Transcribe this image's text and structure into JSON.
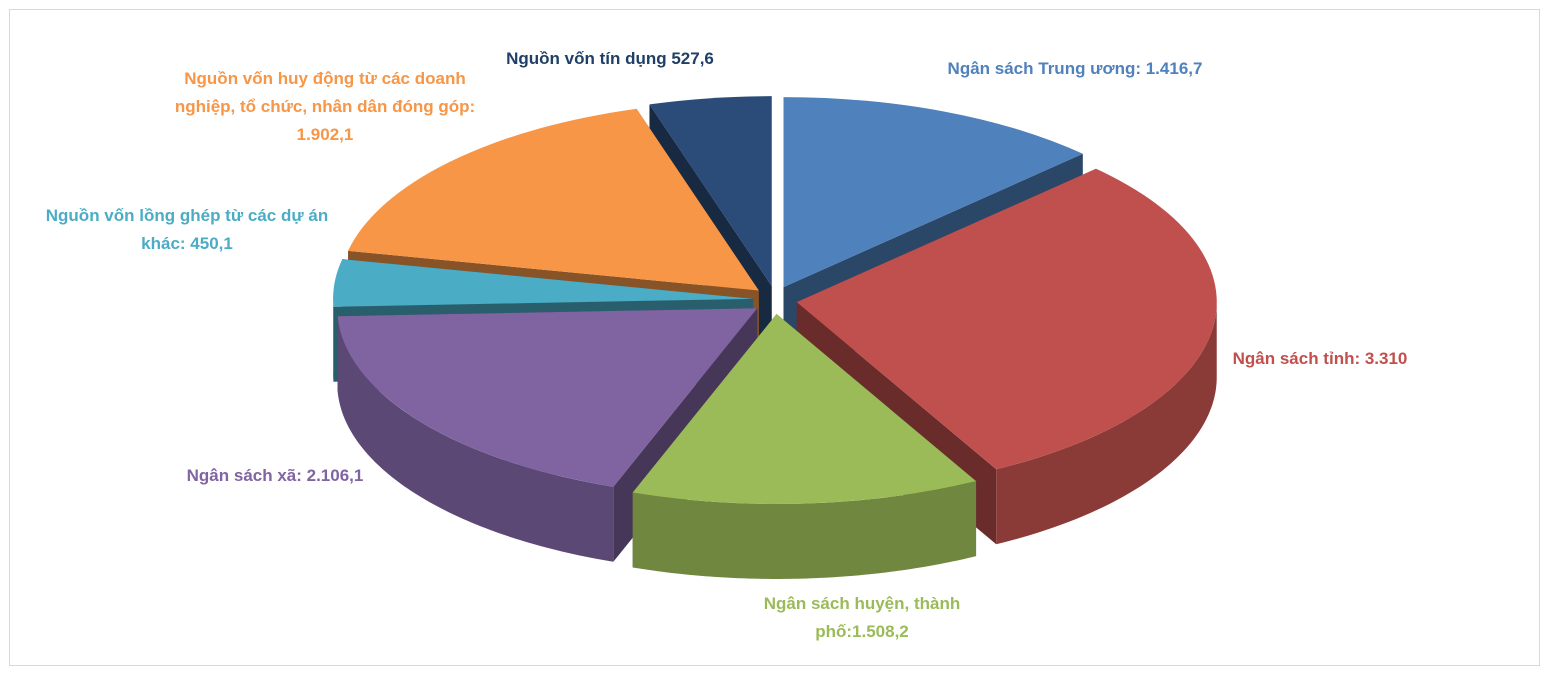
{
  "chart_data": {
    "type": "pie",
    "categories": [
      "Ngân sách Trung ương: 1.416,7",
      "Ngân sách tỉnh: 3.310",
      "Ngân sách huyện, thành phố:1.508,2",
      "Ngân sách xã: 2.106,1",
      "Nguồn vốn lồng ghép từ các dự án khác: 450,1",
      "Nguồn vốn huy động từ các doanh nghiệp, tổ chức, nhân dân đóng góp: 1.902,1",
      "Nguồn vốn tín dụng 527,6"
    ],
    "values": [
      1416.7,
      3310,
      1508.2,
      2106.1,
      450.1,
      1902.1,
      527.6
    ],
    "colors": [
      "#4f81bd",
      "#c0504d",
      "#9bbb59",
      "#8064a2",
      "#4bacc6",
      "#f79646",
      "#2b4b78"
    ],
    "label_colors": [
      "#4f81bd",
      "#c0504d",
      "#9bbb59",
      "#8064a2",
      "#4bacc6",
      "#f79646",
      "#1f3f66"
    ]
  }
}
